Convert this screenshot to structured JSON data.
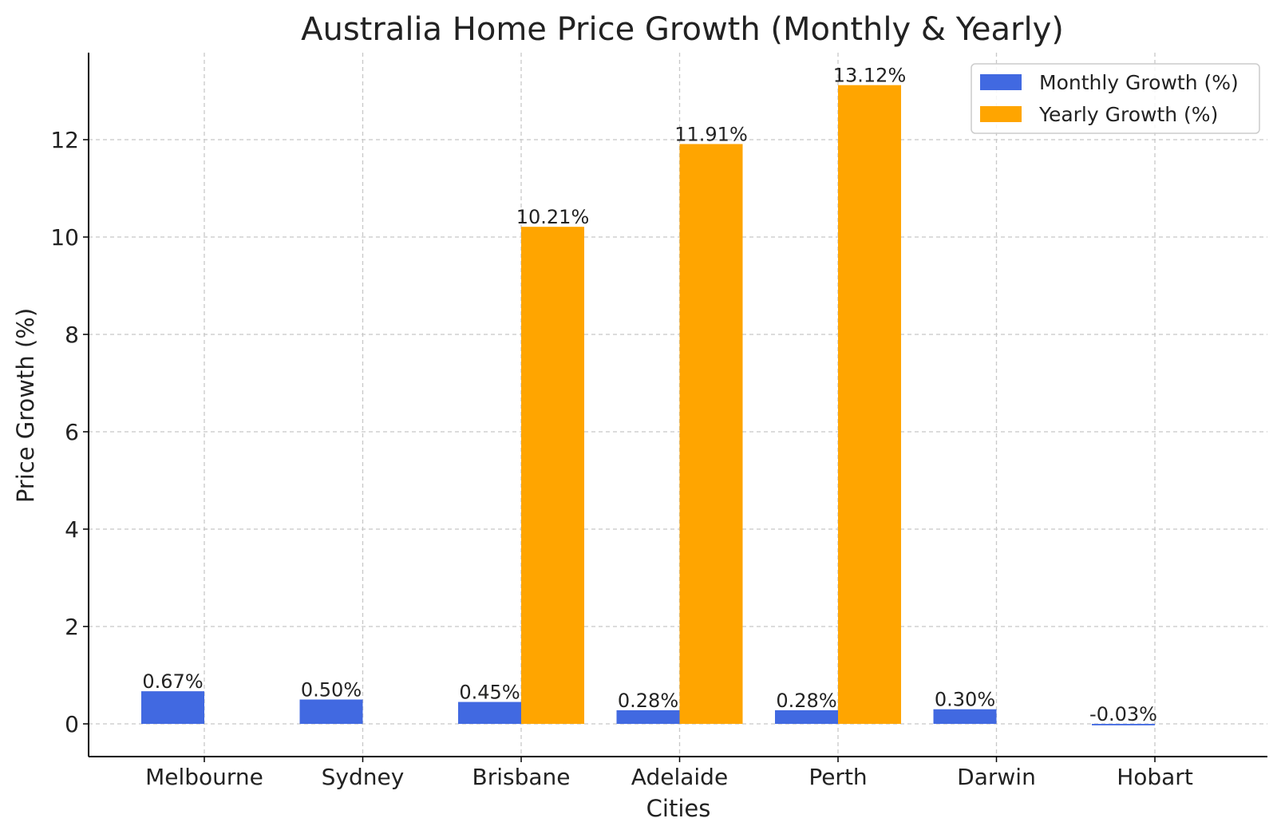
{
  "chart_data": {
    "type": "bar",
    "title": "Australia Home Price Growth (Monthly & Yearly)",
    "xlabel": "Cities",
    "ylabel": "Price Growth (%)",
    "categories": [
      "Melbourne",
      "Sydney",
      "Brisbane",
      "Adelaide",
      "Perth",
      "Darwin",
      "Hobart"
    ],
    "series": [
      {
        "name": "Monthly Growth (%)",
        "color": "#4169e1",
        "values": [
          0.67,
          0.5,
          0.45,
          0.28,
          0.28,
          0.3,
          -0.03
        ],
        "labels": [
          "0.67%",
          "0.50%",
          "0.45%",
          "0.28%",
          "0.28%",
          "0.30%",
          "-0.03%"
        ]
      },
      {
        "name": "Yearly Growth (%)",
        "color": "#ffa500",
        "values": [
          null,
          null,
          10.21,
          11.91,
          13.12,
          null,
          null
        ],
        "labels": [
          null,
          null,
          "10.21%",
          "11.91%",
          "13.12%",
          null,
          null
        ]
      }
    ],
    "yticks": [
      0,
      2,
      4,
      6,
      8,
      10,
      12
    ],
    "ylim": [
      -0.7,
      13.8
    ],
    "grid": true,
    "legend": "top-right"
  }
}
